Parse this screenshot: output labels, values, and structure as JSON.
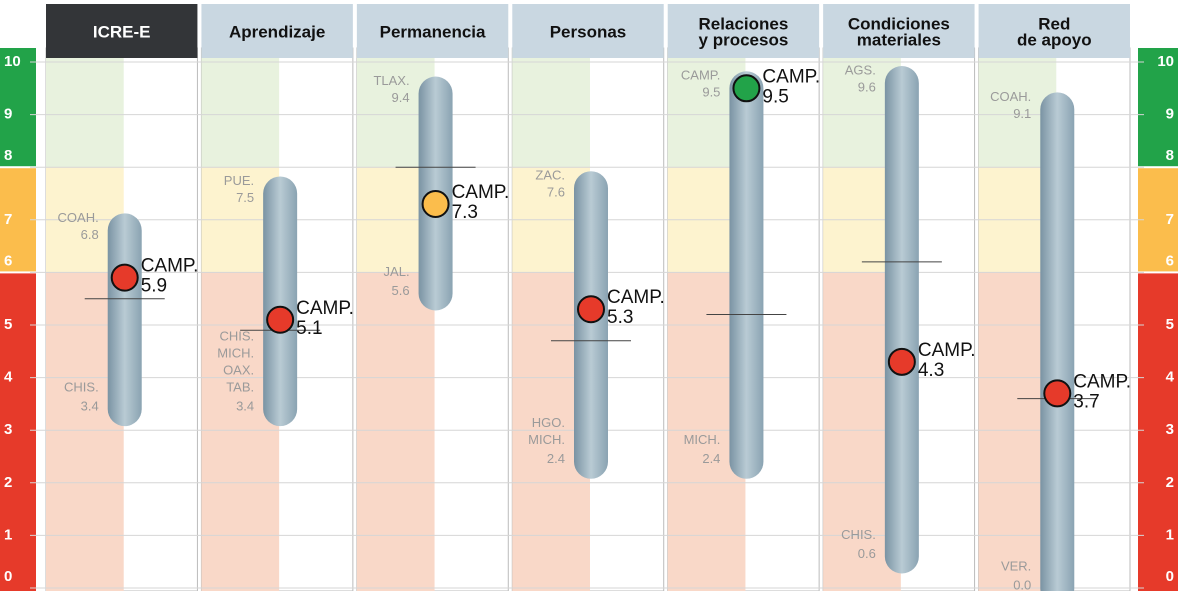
{
  "chart_data": {
    "type": "range",
    "ylim": [
      0,
      10
    ],
    "yticks": [
      0,
      1,
      2,
      3,
      4,
      5,
      6,
      7,
      8,
      9,
      10
    ],
    "zones": [
      {
        "from": 8,
        "to": 10,
        "color": "#22a349",
        "light": "#e8f2de"
      },
      {
        "from": 6,
        "to": 8,
        "color": "#fbbd4c",
        "light": "#fdf3cf"
      },
      {
        "from": 0,
        "to": 6,
        "color": "#e63a2a",
        "light": "#f9d8c8"
      }
    ],
    "columns": [
      {
        "header": [
          "ICRE-E"
        ],
        "max_states": [
          "COAH."
        ],
        "max": 6.8,
        "min_states": [
          "CHIS."
        ],
        "min": 3.4,
        "state": "CAMP.",
        "value": 5.9,
        "average": 5.5
      },
      {
        "header": [
          "Aprendizaje"
        ],
        "max_states": [
          "PUE."
        ],
        "max": 7.5,
        "min_states": [
          "CHIS.",
          "MICH.",
          "OAX.",
          "TAB."
        ],
        "min": 3.4,
        "state": "CAMP.",
        "value": 5.1,
        "average": 4.9
      },
      {
        "header": [
          "Permanencia"
        ],
        "max_states": [
          "TLAX."
        ],
        "max": 9.4,
        "min_states": [
          "JAL."
        ],
        "min": 5.6,
        "state": "CAMP.",
        "value": 7.3,
        "average": 8.0
      },
      {
        "header": [
          "Personas"
        ],
        "max_states": [
          "ZAC."
        ],
        "max": 7.6,
        "min_states": [
          "HGO.",
          "MICH."
        ],
        "min": 2.4,
        "state": "CAMP.",
        "value": 5.3,
        "average": 4.7
      },
      {
        "header": [
          "Relaciones",
          "y procesos"
        ],
        "max_states": [
          "CAMP."
        ],
        "max": 9.5,
        "min_states": [
          "MICH."
        ],
        "min": 2.4,
        "state": "CAMP.",
        "value": 9.5,
        "average": 5.2
      },
      {
        "header": [
          "Condiciones",
          "materiales"
        ],
        "max_states": [
          "AGS."
        ],
        "max": 9.6,
        "min_states": [
          "CHIS."
        ],
        "min": 0.6,
        "state": "CAMP.",
        "value": 4.3,
        "average": 6.2
      },
      {
        "header": [
          "Red",
          "de apoyo"
        ],
        "max_states": [
          "COAH."
        ],
        "max": 9.1,
        "min_states": [
          "VER."
        ],
        "min": 0,
        "min_label": "0.0",
        "state": "CAMP.",
        "value": 3.7,
        "average": 3.6
      }
    ]
  }
}
